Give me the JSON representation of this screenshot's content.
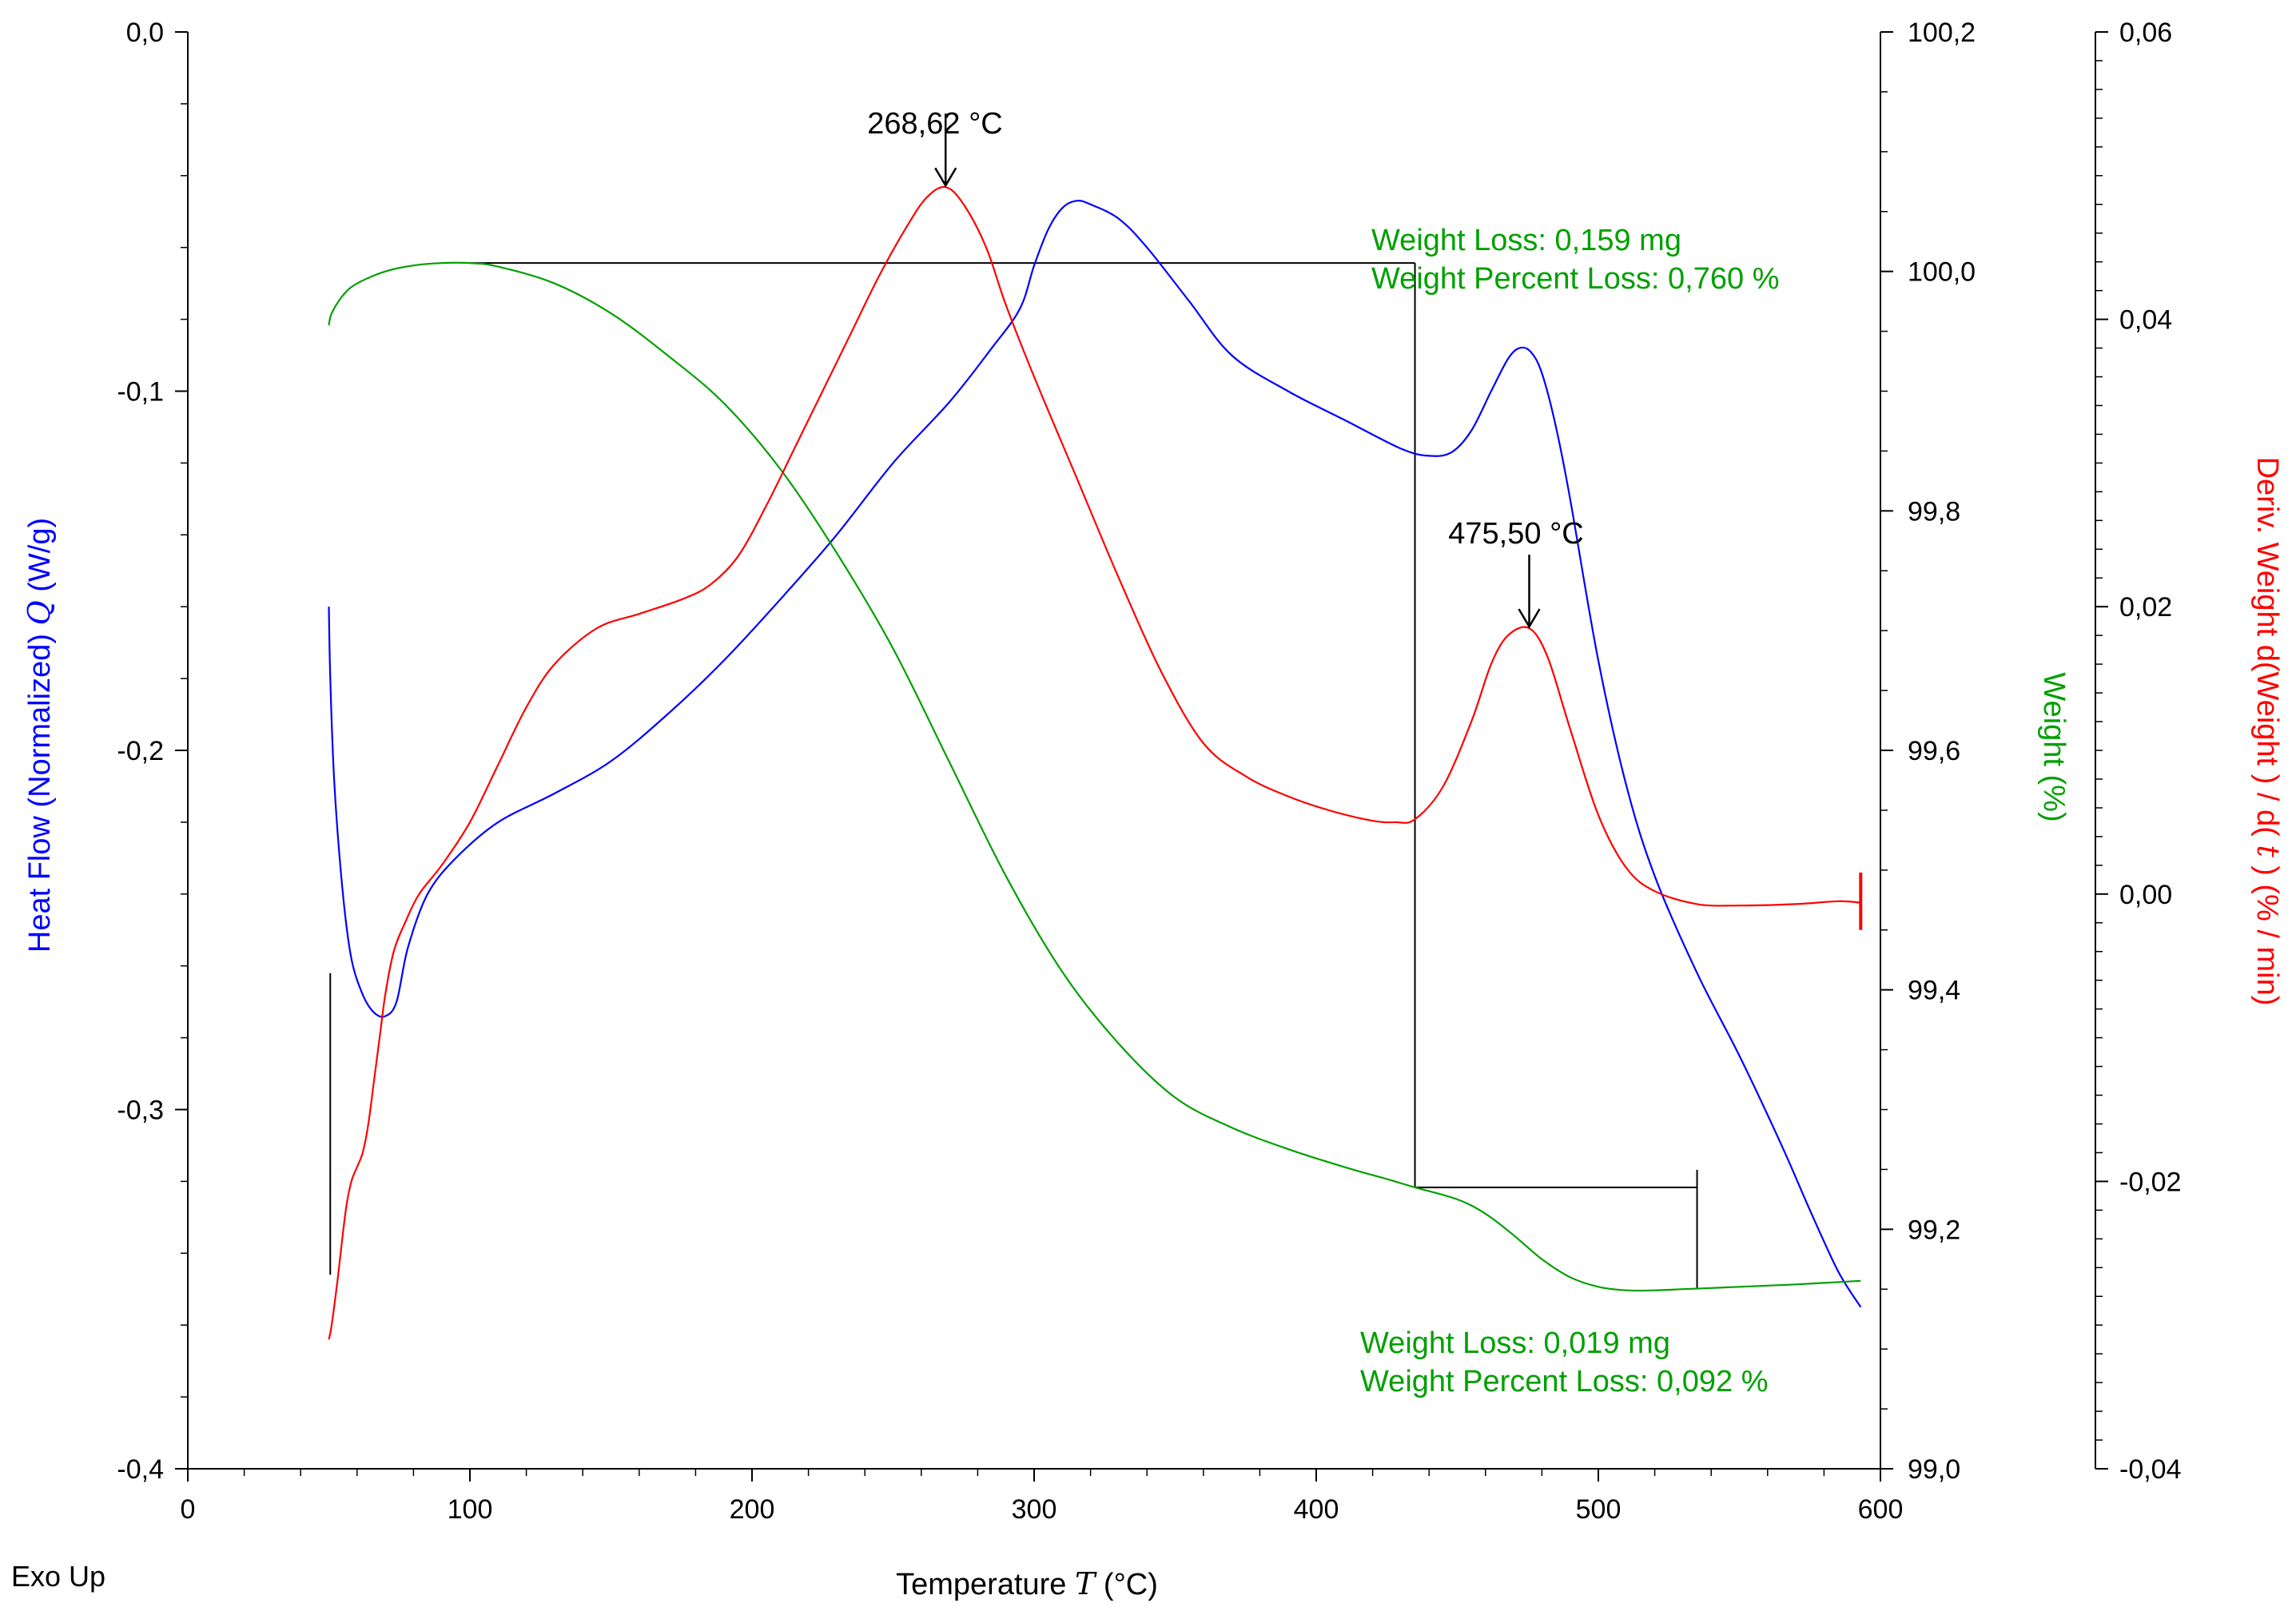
{
  "chart_data": {
    "type": "line",
    "xlabel_prefix": "Temperature",
    "xlabel_var": "T",
    "xlabel_unit": "(°C)",
    "corner_label": "Exo Up",
    "x_axis": {
      "min": 0,
      "max": 600,
      "major": [
        0,
        100,
        200,
        300,
        400,
        500,
        600
      ],
      "labels": [
        "0",
        "100",
        "200",
        "300",
        "400",
        "500",
        "600"
      ]
    },
    "y_left": {
      "min": -0.4,
      "max": 0.0,
      "major": [
        0.0,
        -0.1,
        -0.2,
        -0.3,
        -0.4
      ],
      "labels": [
        "0,0",
        "-0,1",
        "-0,2",
        "-0,3",
        "-0,4"
      ],
      "label_prefix": "Heat Flow (Normalized)",
      "label_var": "Q",
      "label_unit": "(W/g)",
      "color": "#0000ff"
    },
    "y_mid": {
      "min": 99.0,
      "max": 100.2,
      "major": [
        100.2,
        100.0,
        99.8,
        99.6,
        99.4,
        99.2,
        99.0
      ],
      "labels": [
        "100,2",
        "100,0",
        "99,8",
        "99,6",
        "99,4",
        "99,2",
        "99,0"
      ],
      "label_text": "Weight",
      "label_unit": "(%)",
      "color": "#00a000"
    },
    "y_right": {
      "min": -0.04,
      "max": 0.06,
      "major": [
        0.06,
        0.04,
        0.02,
        0.0,
        -0.02,
        -0.04
      ],
      "labels": [
        "0,06",
        "0,04",
        "0,02",
        "0,00",
        "-0,02",
        "-0,04"
      ],
      "label_prefix": "Deriv. Weight d(Weight ) / d(",
      "label_var": "t",
      "label_suffix": ")  (% / min)",
      "color": "#ff0000"
    },
    "series": [
      {
        "name": "Heat Flow",
        "axis": "y_left",
        "color": "#0000ff",
        "x": [
          50,
          50.5,
          52,
          55,
          58,
          62,
          66,
          70,
          74,
          78,
          85,
          95,
          110,
          130,
          150,
          170,
          190,
          210,
          230,
          250,
          270,
          285,
          295,
          300,
          305,
          310,
          315,
          320,
          330,
          340,
          355,
          370,
          390,
          410,
          430,
          440,
          448,
          455,
          462,
          468,
          472,
          476,
          480,
          485,
          490,
          500,
          510,
          520,
          535,
          550,
          565,
          575,
          585,
          593
        ],
        "y": [
          -0.16,
          -0.18,
          -0.21,
          -0.24,
          -0.258,
          -0.268,
          -0.273,
          -0.274,
          -0.27,
          -0.255,
          -0.24,
          -0.23,
          -0.22,
          -0.212,
          -0.203,
          -0.19,
          -0.175,
          -0.158,
          -0.14,
          -0.12,
          -0.103,
          -0.088,
          -0.077,
          -0.065,
          -0.055,
          -0.049,
          -0.047,
          -0.048,
          -0.052,
          -0.06,
          -0.075,
          -0.09,
          -0.1,
          -0.108,
          -0.116,
          -0.118,
          -0.117,
          -0.111,
          -0.1,
          -0.091,
          -0.088,
          -0.089,
          -0.095,
          -0.11,
          -0.13,
          -0.175,
          -0.21,
          -0.235,
          -0.262,
          -0.285,
          -0.31,
          -0.328,
          -0.345,
          -0.355
        ]
      },
      {
        "name": "Weight",
        "axis": "y_mid",
        "color": "#00a000",
        "x": [
          50,
          51,
          55,
          60,
          70,
          80,
          90,
          100,
          110,
          130,
          150,
          170,
          190,
          210,
          230,
          250,
          270,
          290,
          310,
          330,
          350,
          370,
          390,
          410,
          425,
          435,
          450,
          460,
          470,
          480,
          490,
          500,
          510,
          520,
          530,
          540,
          550,
          570,
          593
        ],
        "y": [
          99.955,
          99.965,
          99.98,
          99.99,
          100.0,
          100.005,
          100.007,
          100.007,
          100.004,
          99.99,
          99.965,
          99.93,
          99.89,
          99.835,
          99.765,
          99.685,
          99.59,
          99.495,
          99.415,
          99.355,
          99.31,
          99.285,
          99.267,
          99.252,
          99.242,
          99.235,
          99.225,
          99.213,
          99.195,
          99.175,
          99.16,
          99.152,
          99.149,
          99.149,
          99.15,
          99.151,
          99.152,
          99.154,
          99.157
        ]
      },
      {
        "name": "Deriv. Weight",
        "axis": "y_right",
        "color": "#ff0000",
        "x": [
          50,
          51,
          53,
          56,
          58,
          60,
          62,
          64,
          66,
          68,
          70,
          73,
          77,
          82,
          90,
          100,
          110,
          120,
          130,
          145,
          160,
          175,
          185,
          195,
          205,
          215,
          225,
          235,
          245,
          255,
          262,
          268.62,
          275,
          283,
          290,
          300,
          315,
          330,
          345,
          360,
          375,
          390,
          405,
          420,
          428,
          435,
          445,
          455,
          462,
          468,
          475.5,
          482,
          490,
          500,
          510,
          520,
          535,
          550,
          570,
          585,
          593
        ],
        "y": [
          -0.031,
          -0.03,
          -0.027,
          -0.022,
          -0.02,
          -0.019,
          -0.018,
          -0.016,
          -0.013,
          -0.01,
          -0.007,
          -0.004,
          -0.002,
          0.0,
          0.002,
          0.005,
          0.009,
          0.013,
          0.016,
          0.0185,
          0.0195,
          0.0205,
          0.0215,
          0.0235,
          0.027,
          0.031,
          0.035,
          0.039,
          0.043,
          0.0465,
          0.0485,
          0.0492,
          0.048,
          0.045,
          0.041,
          0.036,
          0.029,
          0.022,
          0.0155,
          0.0105,
          0.0082,
          0.0068,
          0.0058,
          0.0051,
          0.005,
          0.0052,
          0.0075,
          0.012,
          0.016,
          0.018,
          0.0185,
          0.0165,
          0.0115,
          0.0055,
          0.0018,
          0.0002,
          -0.0007,
          -0.0008,
          -0.0007,
          -0.0005,
          -0.0006
        ]
      }
    ],
    "annotations": {
      "peak1_label": "268,62 °C",
      "peak1_temp": 268.62,
      "peak2_label": "475,50 °C",
      "peak2_temp": 475.5,
      "loss1_line1": "Weight Loss: 0,159 mg",
      "loss1_line2": "Weight Percent Loss: 0,760 %",
      "loss1_start_temp": 100,
      "loss1_end_temp": 435,
      "loss2_line1": "Weight Loss: 0,019 mg",
      "loss2_line2": "Weight Percent Loss: 0,092 %",
      "loss2_start_temp": 435,
      "loss2_end_temp": 535,
      "annotation_color": "#00a000"
    }
  }
}
